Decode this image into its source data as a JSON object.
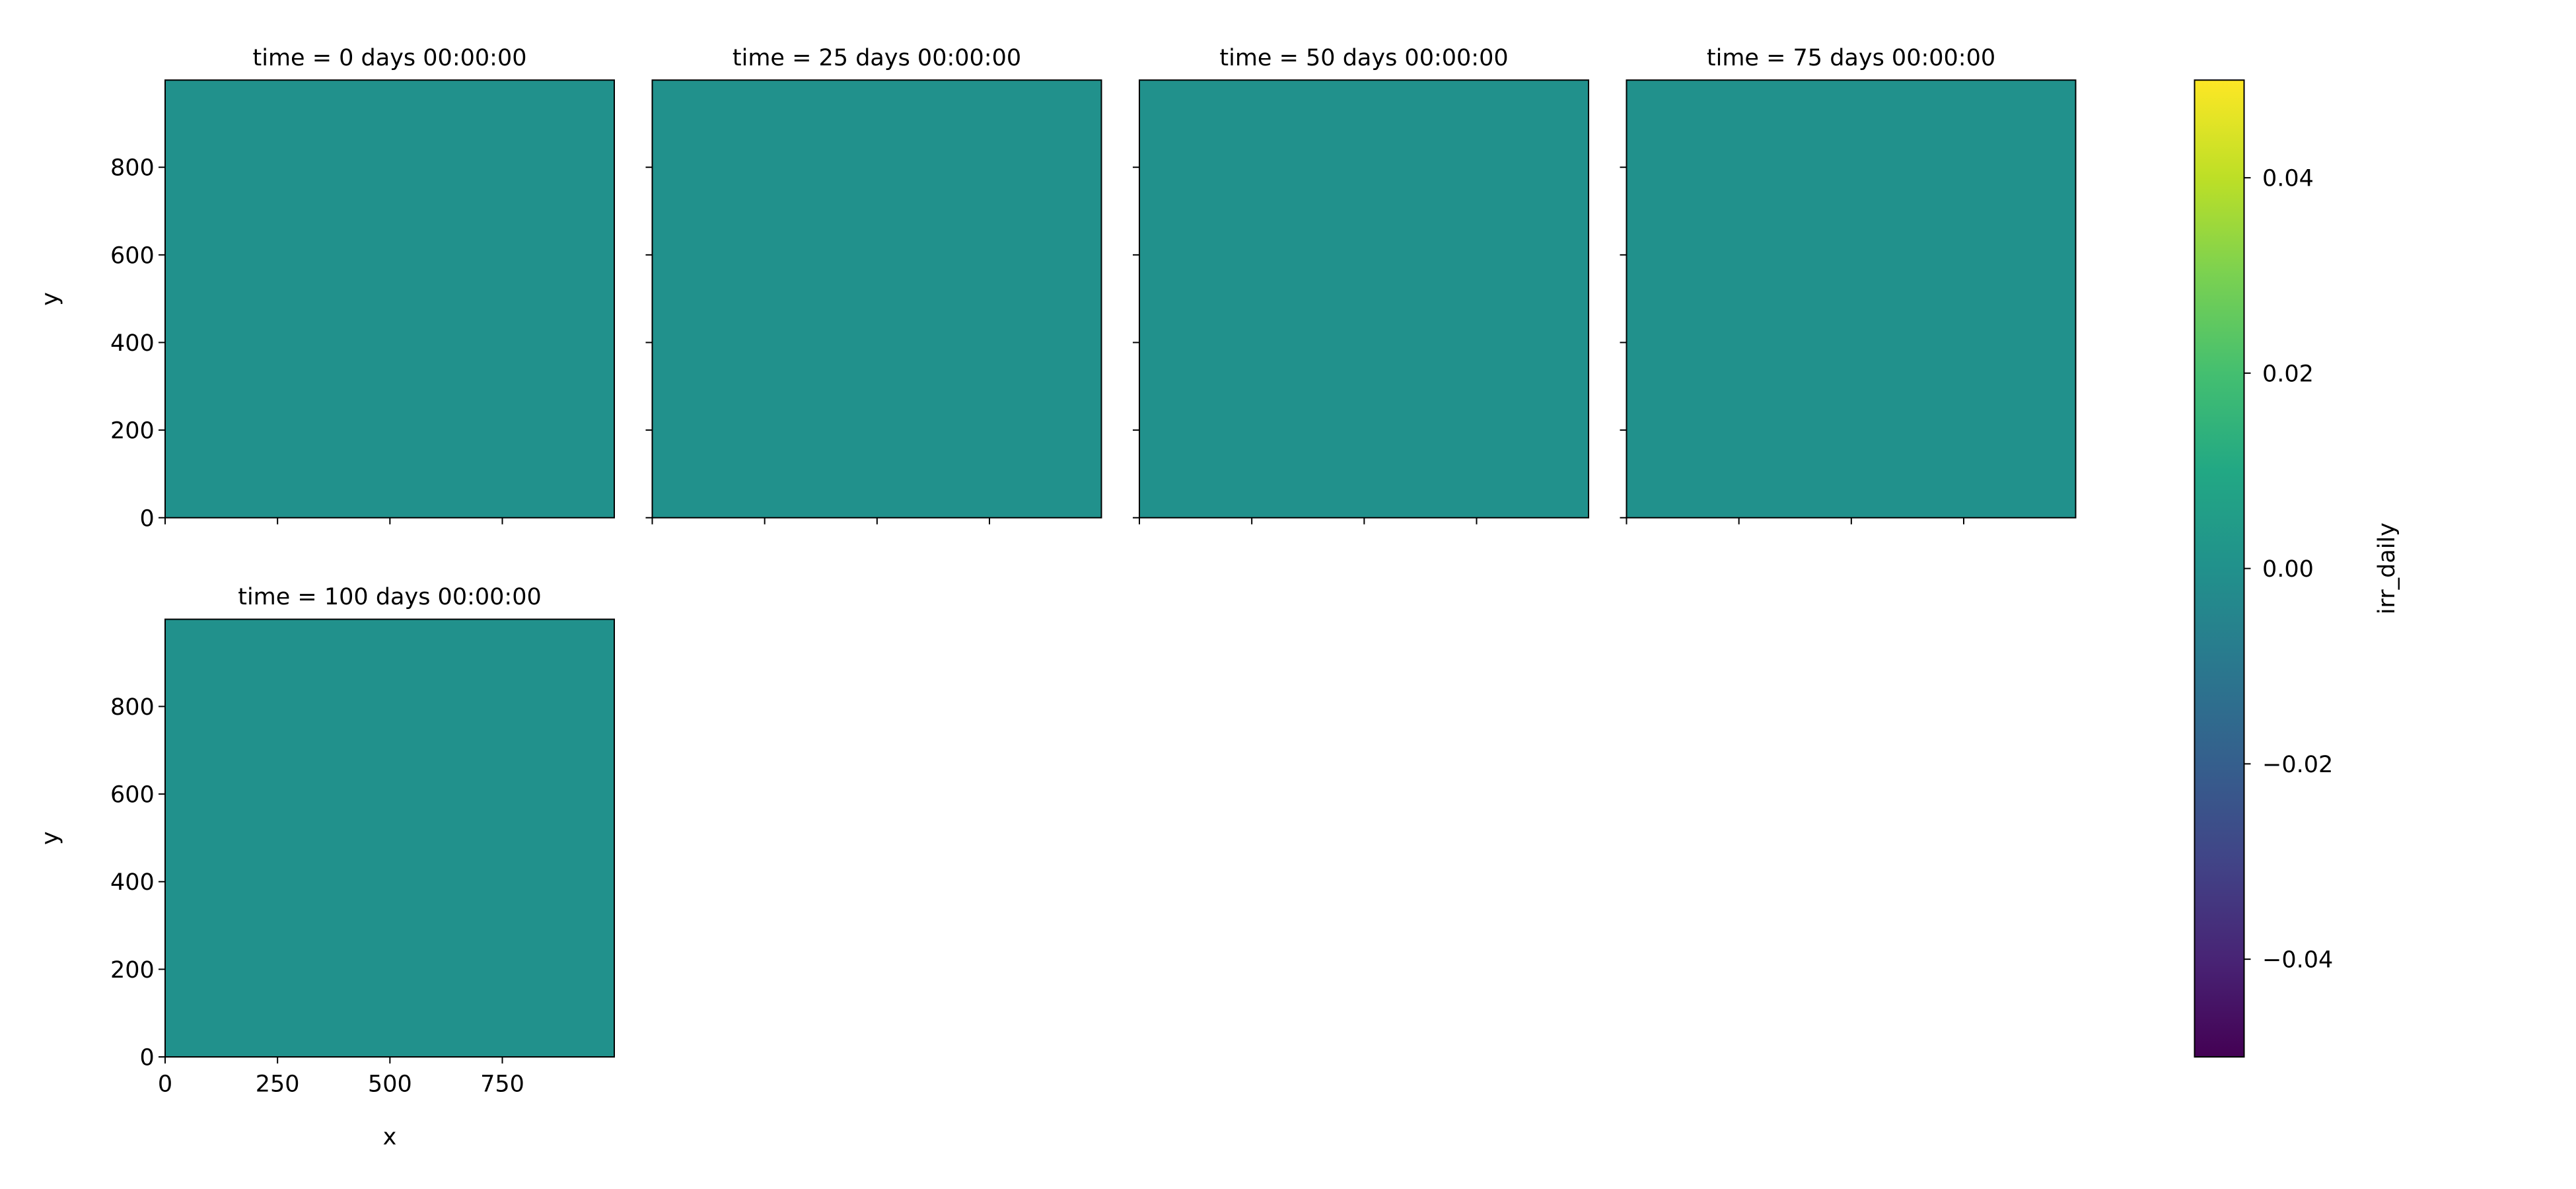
{
  "chart_data": {
    "type": "heatmap",
    "layout": "faceted small multiples, 4 columns",
    "x_label": "x",
    "y_label": "y",
    "x_range": [
      0,
      999
    ],
    "y_range": [
      0,
      999
    ],
    "x_ticks": [
      0,
      250,
      500,
      750
    ],
    "y_ticks": [
      0,
      200,
      400,
      600,
      800
    ],
    "x_tick_labels": [
      "0",
      "250",
      "500",
      "750"
    ],
    "y_tick_labels": [
      "0",
      "200",
      "400",
      "600",
      "800"
    ],
    "panels": [
      {
        "title": "time = 0 days 00:00:00",
        "time_days": 0,
        "value": 0.0
      },
      {
        "title": "time = 25 days 00:00:00",
        "time_days": 25,
        "value": 0.0
      },
      {
        "title": "time = 50 days 00:00:00",
        "time_days": 50,
        "value": 0.0
      },
      {
        "title": "time = 75 days 00:00:00",
        "time_days": 75,
        "value": 0.0
      },
      {
        "title": "time = 100 days 00:00:00",
        "time_days": 100,
        "value": 0.0
      }
    ],
    "colorbar": {
      "label": "irr_daily",
      "colormap": "viridis",
      "range": [
        -0.05,
        0.05
      ],
      "ticks": [
        -0.04,
        -0.02,
        0.0,
        0.02,
        0.04
      ],
      "tick_labels": [
        "−0.04",
        "−0.02",
        "0.00",
        "0.02",
        "0.04"
      ]
    },
    "colors": {
      "panel_fill": "#21918c"
    },
    "grid": false
  }
}
